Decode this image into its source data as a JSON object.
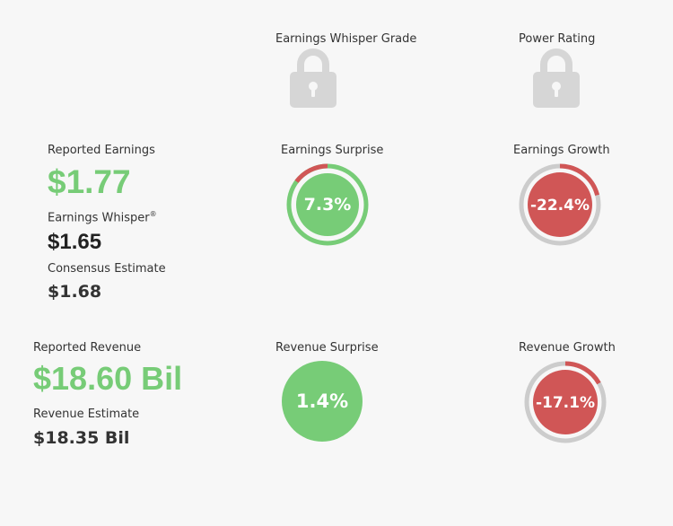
{
  "grades": {
    "whisper_grade_label": "Earnings Whisper Grade",
    "power_rating_label": "Power Rating",
    "lock_icon": "lock-icon"
  },
  "earnings": {
    "reported_label": "Reported Earnings",
    "reported_value": "$1.77",
    "whisper_label": "Earnings Whisper",
    "whisper_mark": "®",
    "whisper_value": "$1.65",
    "consensus_label": "Consensus Estimate",
    "consensus_value": "$1.68",
    "surprise_label": "Earnings Surprise",
    "surprise_value": "7.3%",
    "growth_label": "Earnings Growth",
    "growth_value": "-22.4%"
  },
  "revenue": {
    "reported_label": "Reported Revenue",
    "reported_value": "$18.60 Bil",
    "estimate_label": "Revenue Estimate",
    "estimate_value": "$18.35 Bil",
    "surprise_label": "Revenue Surprise",
    "surprise_value": "1.4%",
    "growth_label": "Revenue Growth",
    "growth_value": "-17.1%"
  },
  "colors": {
    "positive": "#77cc77",
    "negative": "#d05656",
    "ring_gray": "#cccccc",
    "lock_gray": "#d6d6d6"
  }
}
